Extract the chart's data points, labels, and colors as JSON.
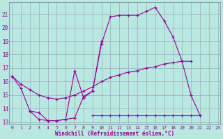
{
  "bg_color": "#b8e8e0",
  "line_color": "#990099",
  "grid_color": "#9999bb",
  "xlabel": "Windchill (Refroidissement éolien,°C)",
  "xlim": [
    -0.3,
    23.3
  ],
  "ylim": [
    12.8,
    21.9
  ],
  "yticks": [
    13,
    14,
    15,
    16,
    17,
    18,
    19,
    20,
    21
  ],
  "xticks": [
    0,
    1,
    2,
    3,
    4,
    5,
    6,
    7,
    8,
    9,
    10,
    11,
    12,
    13,
    14,
    15,
    16,
    17,
    18,
    19,
    20,
    21,
    22,
    23
  ],
  "curve_outer_x": [
    0,
    1,
    2,
    3,
    4,
    5,
    6,
    7,
    8,
    9,
    10,
    11,
    12,
    13,
    14,
    15,
    16,
    17,
    18,
    19,
    20,
    21
  ],
  "curve_outer_y": [
    16.4,
    15.5,
    13.8,
    13.2,
    13.1,
    13.1,
    13.2,
    13.3,
    14.9,
    15.3,
    18.8,
    20.8,
    20.9,
    20.9,
    20.9,
    21.2,
    21.5,
    20.5,
    19.3,
    17.5,
    15.0,
    13.5
  ],
  "curve_inner_x": [
    2,
    3,
    4,
    5,
    6,
    7,
    8,
    9,
    10
  ],
  "curve_inner_y": [
    13.8,
    13.7,
    13.1,
    13.1,
    13.2,
    16.8,
    14.8,
    15.3,
    19.0
  ],
  "curve_flat_x": [
    9,
    10,
    11,
    12,
    13,
    14,
    15,
    16,
    17,
    18,
    19,
    20,
    21
  ],
  "curve_flat_y": [
    13.5,
    13.5,
    13.5,
    13.5,
    13.5,
    13.5,
    13.5,
    13.5,
    13.5,
    13.5,
    13.5,
    13.5,
    13.5
  ],
  "curve_diag_x": [
    0,
    1,
    2,
    3,
    4,
    5,
    6,
    7,
    8,
    9,
    10,
    11,
    12,
    13,
    14,
    15,
    16,
    17,
    18,
    19,
    20
  ],
  "curve_diag_y": [
    16.4,
    15.8,
    15.4,
    15.0,
    14.8,
    14.7,
    14.8,
    15.0,
    15.3,
    15.6,
    16.0,
    16.3,
    16.5,
    16.7,
    16.8,
    17.0,
    17.1,
    17.3,
    17.4,
    17.5,
    17.5
  ]
}
